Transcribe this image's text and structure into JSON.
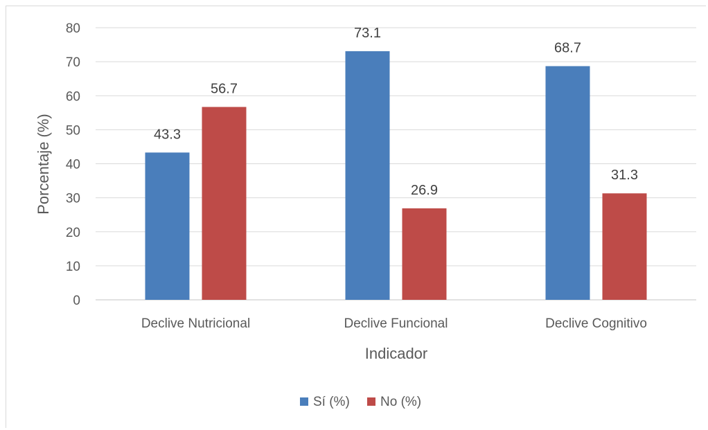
{
  "chart_data": {
    "type": "bar",
    "categories": [
      "Declive Nutricional",
      "Declive Funcional",
      "Declive Cognitivo"
    ],
    "series": [
      {
        "name": "Sí (%)",
        "values": [
          43.3,
          73.1,
          68.7
        ],
        "color": "#4a7ebb"
      },
      {
        "name": "No (%)",
        "values": [
          56.7,
          26.9,
          31.3
        ],
        "color": "#be4b48"
      }
    ],
    "data_labels": [
      [
        "43.3",
        "73.1",
        "68.7"
      ],
      [
        "56.7",
        "26.9",
        "31.3"
      ]
    ],
    "xlabel": "Indicador",
    "ylabel": "Porcentaje (%)",
    "ylim": [
      0,
      80
    ],
    "yticks": [
      "0",
      "10",
      "20",
      "30",
      "40",
      "50",
      "60",
      "70",
      "80"
    ],
    "grid": true,
    "legend": "bottom",
    "gridline_color": "#d9d9d9"
  }
}
